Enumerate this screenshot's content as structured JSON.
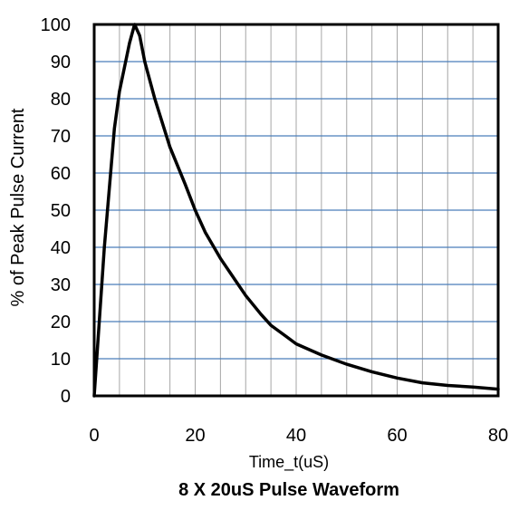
{
  "chart_data": {
    "type": "line",
    "title": "8 X 20uS Pulse Waveform",
    "xlabel": "Time_t(uS)",
    "ylabel": "% of Peak Pulse Current",
    "xlim": [
      0,
      80
    ],
    "ylim": [
      0,
      100
    ],
    "x_ticks": [
      0,
      20,
      40,
      60,
      80
    ],
    "y_ticks": [
      0,
      10,
      20,
      30,
      40,
      50,
      60,
      70,
      80,
      90,
      100
    ],
    "x_minor_grid_step": 5,
    "y_grid_step": 10,
    "grid": true,
    "colors": {
      "line": "#000000",
      "horizontal_grid": "#4a7ebb",
      "vertical_grid": "#a6a6a6",
      "frame": "#000000"
    },
    "series": [
      {
        "x": [
          0,
          2,
          4,
          5,
          7,
          8,
          9,
          10,
          12,
          15,
          18,
          20,
          22,
          25,
          28,
          30,
          33,
          35,
          38,
          40,
          45,
          50,
          55,
          60,
          65,
          70,
          75,
          80
        ],
        "values": [
          0,
          40,
          72,
          82,
          95,
          100,
          97,
          90,
          80,
          67,
          57,
          50,
          44,
          37,
          31,
          27,
          22,
          19,
          16,
          14,
          11,
          8.5,
          6.5,
          4.8,
          3.5,
          2.8,
          2.4,
          1.8
        ]
      }
    ]
  }
}
